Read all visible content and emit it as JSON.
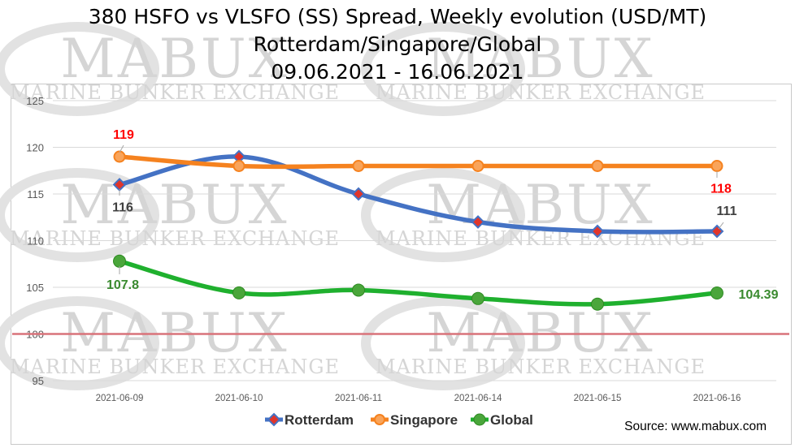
{
  "chart_data": {
    "type": "line",
    "title_lines": [
      "380 HSFO vs VLSFO (SS) Spread, Weekly evolution (USD/MT)",
      "Rotterdam/Singapore/Global",
      "09.06.2021 - 16.06.2021"
    ],
    "categories": [
      "2021-06-09",
      "2021-06-10",
      "2021-06-11",
      "2021-06-14",
      "2021-06-15",
      "2021-06-16"
    ],
    "ylim": [
      95,
      125
    ],
    "yticks": [
      95,
      100,
      105,
      110,
      115,
      120,
      125
    ],
    "grid": true,
    "reference_line": {
      "value": 100,
      "color": "#d9737a"
    },
    "legend_position": "bottom",
    "series": [
      {
        "name": "Rotterdam",
        "color": "#4472c4",
        "marker": "diamond",
        "marker_fill": "#e0352b",
        "values": [
          116,
          119,
          115,
          112,
          111,
          111
        ],
        "data_labels": [
          {
            "index": 0,
            "text": "116",
            "color": "#404040"
          },
          {
            "index": 5,
            "text": "111",
            "color": "#404040"
          }
        ]
      },
      {
        "name": "Singapore",
        "color": "#f5821f",
        "marker": "circle",
        "values": [
          119,
          118,
          118,
          118,
          118,
          118
        ],
        "data_labels": [
          {
            "index": 0,
            "text": "119",
            "color": "#ff0000"
          },
          {
            "index": 5,
            "text": "118",
            "color": "#ff0000"
          }
        ]
      },
      {
        "name": "Global",
        "color": "#1fb02e",
        "marker": "circle",
        "values": [
          107.8,
          104.4,
          104.7,
          103.8,
          103.2,
          104.39
        ],
        "data_labels": [
          {
            "index": 0,
            "text": "107.8",
            "color": "#3a8a2f"
          },
          {
            "index": 5,
            "text": "104.39",
            "color": "#3a8a2f"
          }
        ]
      }
    ],
    "source": "Source: www.mabux.com",
    "watermark": {
      "big": "MABUX",
      "small": "MARINE BUNKER EXCHANGE"
    }
  }
}
